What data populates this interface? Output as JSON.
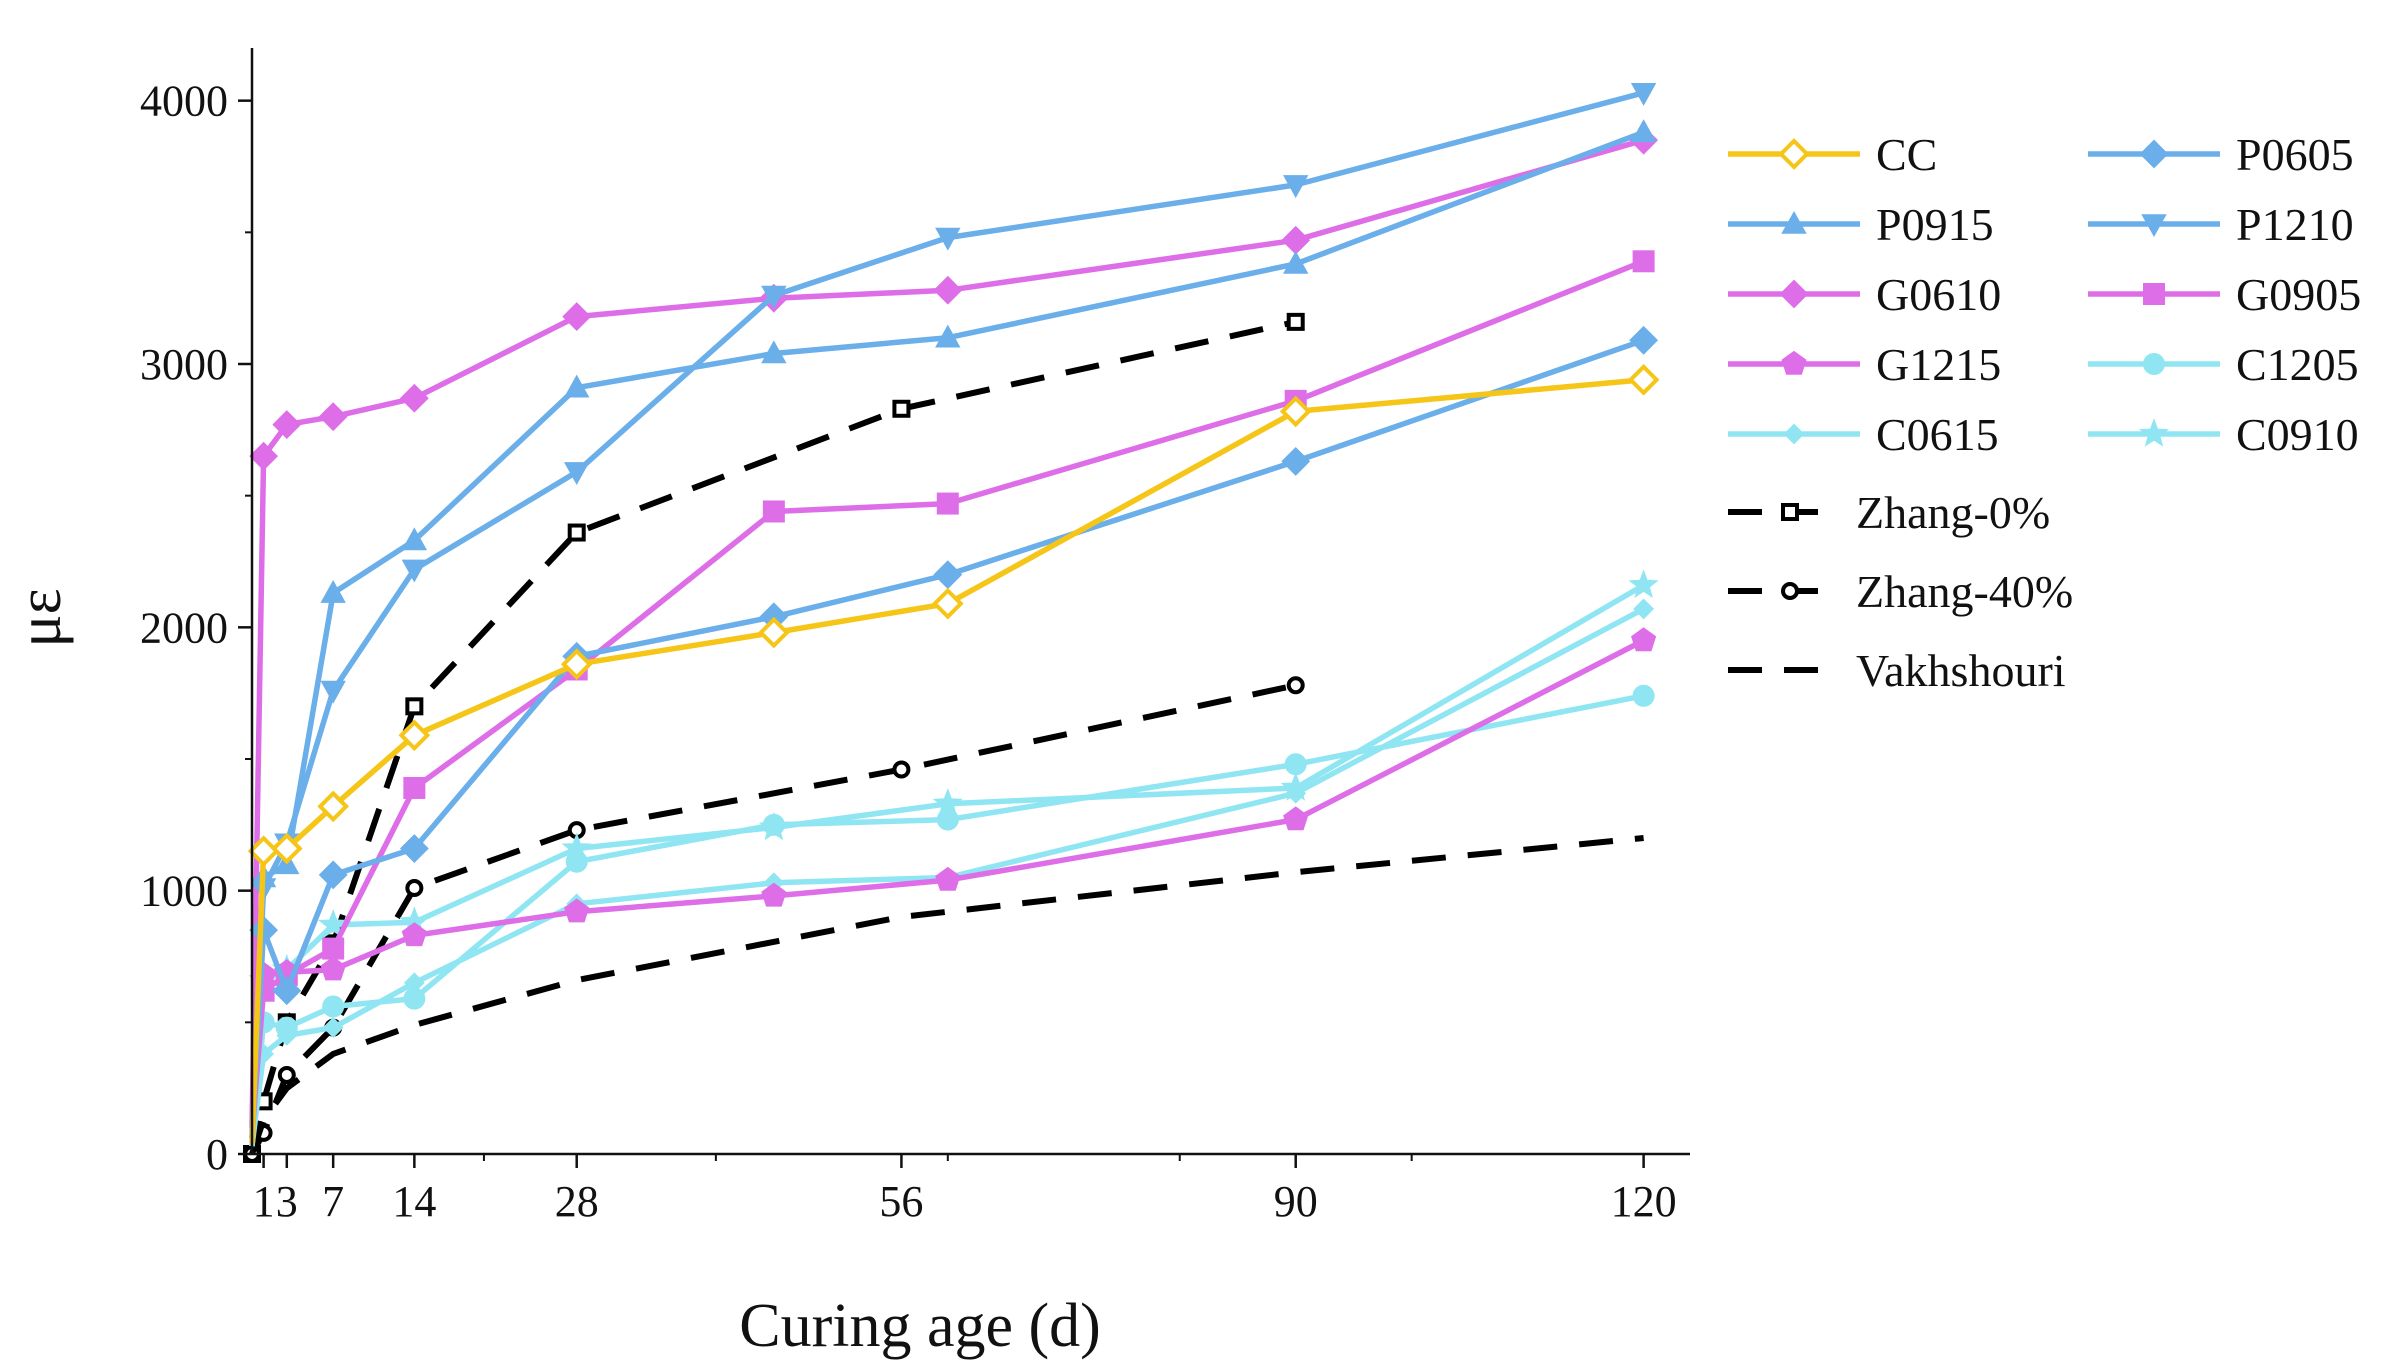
{
  "chart_data": {
    "type": "line",
    "title": "",
    "xlabel": "Curing age (d)",
    "ylabel": "με",
    "xlim": [
      0,
      124
    ],
    "ylim": [
      0,
      4200
    ],
    "x_ticks": [
      1,
      3,
      7,
      14,
      28,
      56,
      90,
      120
    ],
    "x_tick_labels": [
      "1",
      "3",
      "7",
      "14",
      "28",
      "56",
      "90",
      "120"
    ],
    "y_ticks": [
      0,
      1000,
      2000,
      3000,
      4000
    ],
    "y_tick_labels": [
      "0",
      "1000",
      "2000",
      "3000",
      "4000"
    ],
    "grid": false,
    "legend_position": "right",
    "series": [
      {
        "name": "CC",
        "color": "#f5c518",
        "marker": "diamond-open",
        "x": [
          0,
          1,
          3,
          7,
          14,
          28,
          45,
          60,
          90,
          120
        ],
        "values": [
          40,
          1150,
          1160,
          1320,
          1590,
          1860,
          1980,
          2090,
          2820,
          2940
        ]
      },
      {
        "name": "P0605",
        "color": "#6aaeea",
        "marker": "diamond",
        "x": [
          0,
          1,
          3,
          7,
          14,
          28,
          45,
          60,
          90,
          120
        ],
        "values": [
          60,
          850,
          620,
          1060,
          1160,
          1890,
          2040,
          2200,
          2630,
          3090
        ]
      },
      {
        "name": "P0915",
        "color": "#6aaeea",
        "marker": "triangle",
        "x": [
          0,
          1,
          3,
          7,
          14,
          28,
          45,
          60,
          90,
          120
        ],
        "values": [
          60,
          1050,
          1100,
          2130,
          2330,
          2910,
          3040,
          3100,
          3380,
          3880
        ]
      },
      {
        "name": "P1210",
        "color": "#6aaeea",
        "marker": "triangle-down",
        "x": [
          0,
          1,
          3,
          7,
          14,
          28,
          45,
          60,
          90,
          120
        ],
        "values": [
          60,
          1010,
          1180,
          1760,
          2220,
          2590,
          3260,
          3480,
          3680,
          4030
        ]
      },
      {
        "name": "G0610",
        "color": "#dd6ee8",
        "marker": "diamond",
        "x": [
          0,
          1,
          3,
          7,
          14,
          28,
          45,
          60,
          90,
          120
        ],
        "values": [
          100,
          2650,
          2770,
          2800,
          2870,
          3180,
          3250,
          3280,
          3470,
          3850
        ]
      },
      {
        "name": "G0905",
        "color": "#dd6ee8",
        "marker": "square",
        "x": [
          0,
          1,
          3,
          7,
          14,
          28,
          45,
          60,
          90,
          120
        ],
        "values": [
          80,
          620,
          680,
          780,
          1390,
          1840,
          2440,
          2470,
          2860,
          3390
        ]
      },
      {
        "name": "G1215",
        "color": "#dd6ee8",
        "marker": "pentagon",
        "x": [
          0,
          1,
          3,
          7,
          14,
          28,
          45,
          60,
          90,
          120
        ],
        "values": [
          60,
          680,
          690,
          700,
          830,
          920,
          980,
          1040,
          1270,
          1950
        ]
      },
      {
        "name": "C1205",
        "color": "#8fe6f2",
        "marker": "circle",
        "x": [
          0,
          1,
          3,
          7,
          14,
          28,
          45,
          60,
          90,
          120
        ],
        "values": [
          30,
          500,
          480,
          560,
          590,
          1110,
          1250,
          1270,
          1480,
          1740
        ]
      },
      {
        "name": "C0615",
        "color": "#8fe6f2",
        "marker": "diamond-small",
        "x": [
          0,
          1,
          3,
          7,
          14,
          28,
          45,
          60,
          90,
          120
        ],
        "values": [
          30,
          380,
          450,
          480,
          650,
          950,
          1030,
          1050,
          1370,
          2070
        ]
      },
      {
        "name": "C0910",
        "color": "#8fe6f2",
        "marker": "star",
        "x": [
          0,
          1,
          3,
          7,
          14,
          28,
          45,
          60,
          90,
          120
        ],
        "values": [
          30,
          660,
          700,
          870,
          880,
          1160,
          1240,
          1330,
          1390,
          2160
        ]
      },
      {
        "name": "Zhang-0%",
        "color": "#000000",
        "dashed": true,
        "marker": "square-open",
        "x": [
          0,
          1,
          3,
          7,
          14,
          28,
          56,
          90
        ],
        "values": [
          0,
          200,
          500,
          800,
          1700,
          2360,
          2830,
          3160
        ]
      },
      {
        "name": "Zhang-40%",
        "color": "#000000",
        "dashed": true,
        "marker": "circle-open",
        "x": [
          0,
          1,
          3,
          7,
          14,
          28,
          56,
          90
        ],
        "values": [
          0,
          80,
          300,
          480,
          1010,
          1230,
          1460,
          1780
        ]
      },
      {
        "name": "Vakhshouri",
        "color": "#000000",
        "dashed": true,
        "marker": "none",
        "x": [
          0,
          1,
          3,
          7,
          14,
          28,
          56,
          90,
          120
        ],
        "values": [
          0,
          130,
          250,
          380,
          490,
          660,
          900,
          1070,
          1200
        ]
      }
    ]
  }
}
